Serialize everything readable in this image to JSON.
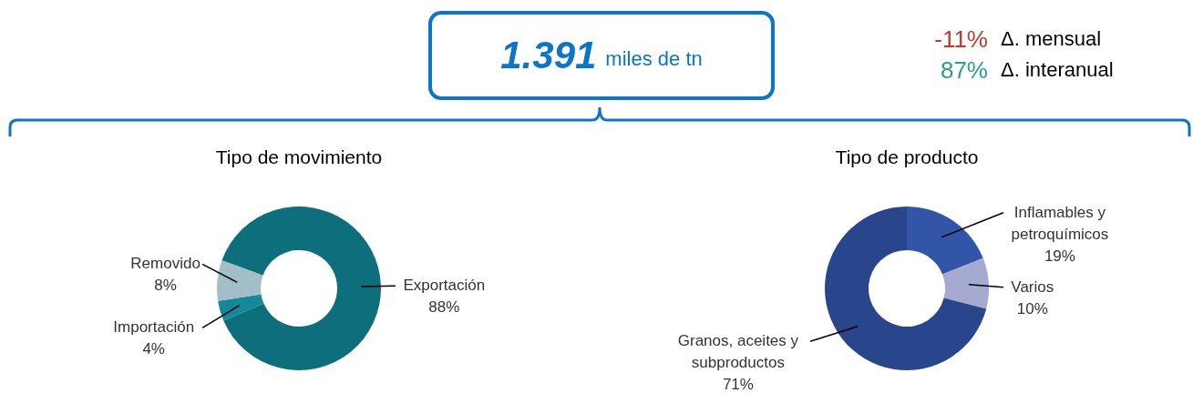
{
  "chart_data": [
    {
      "type": "other",
      "annotations": [
        "1.391",
        "miles de tn",
        "-11%",
        "Δ. mensual",
        "87%",
        "Δ. interanual"
      ]
    },
    {
      "type": "donut",
      "title": "Tipo de movimiento",
      "categories": [
        "Exportación",
        "Importación",
        "Removido"
      ],
      "values": [
        88,
        4,
        8
      ],
      "colors": [
        "#0e6f7c",
        "#13899a",
        "#a2bfc8"
      ],
      "value_labels": [
        "88%",
        "4%",
        "8%"
      ]
    },
    {
      "type": "donut",
      "title": "Tipo de producto",
      "categories": [
        "Inflamables y petroquímicos",
        "Varios",
        "Granos, aceites y subproductos"
      ],
      "values": [
        19,
        10,
        71
      ],
      "colors": [
        "#3355a8",
        "#a4aad0",
        "#29458c"
      ],
      "value_labels": [
        "19%",
        "10%",
        "71%"
      ]
    }
  ]
}
